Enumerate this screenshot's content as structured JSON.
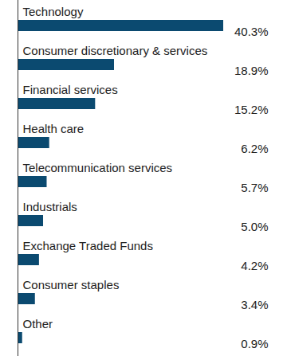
{
  "chart_data": {
    "type": "bar",
    "orientation": "horizontal",
    "categories": [
      "Technology",
      "Consumer discretionary & services",
      "Financial services",
      "Health care",
      "Telecommunication services",
      "Industrials",
      "Exchange Traded Funds",
      "Consumer staples",
      "Other"
    ],
    "values": [
      40.3,
      18.9,
      15.2,
      6.2,
      5.7,
      5.0,
      4.2,
      3.4,
      0.9
    ],
    "value_labels": [
      "40.3%",
      "18.9%",
      "15.2%",
      "6.2%",
      "5.7%",
      "5.0%",
      "4.2%",
      "3.4%",
      "0.9%"
    ],
    "color": "#0b4a70",
    "data_labels": true,
    "tick_labels": false
  }
}
